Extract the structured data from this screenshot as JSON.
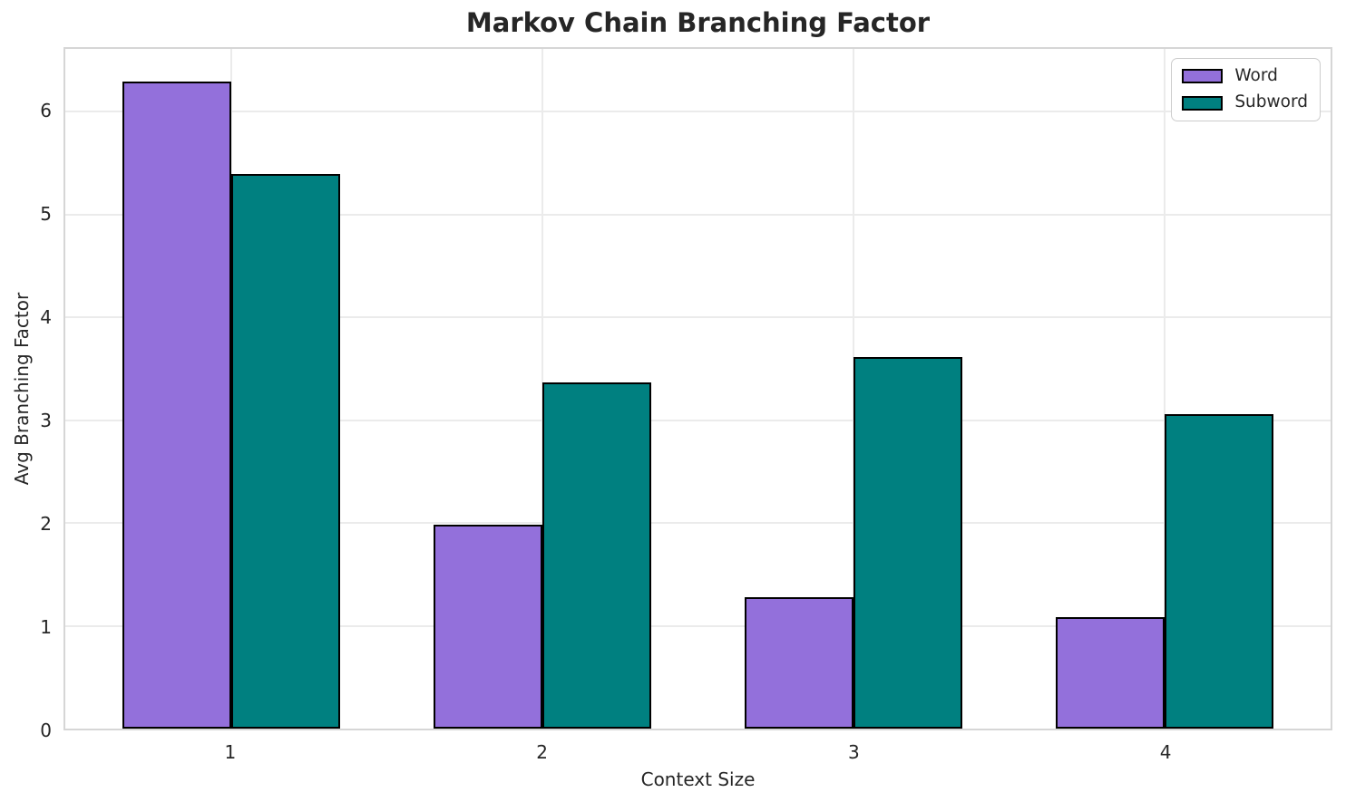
{
  "chart_data": {
    "type": "bar",
    "title": "Markov Chain Branching Factor",
    "xlabel": "Context Size",
    "ylabel": "Avg Branching Factor",
    "categories": [
      "1",
      "2",
      "3",
      "4"
    ],
    "series": [
      {
        "name": "Word",
        "color": "#9370DB",
        "values": [
          6.29,
          1.98,
          1.28,
          1.08
        ]
      },
      {
        "name": "Subword",
        "color": "#008080",
        "values": [
          5.39,
          3.37,
          3.61,
          3.06
        ]
      }
    ],
    "ylim": [
      0,
      6.61
    ],
    "yticks": [
      0,
      1,
      2,
      3,
      4,
      5,
      6
    ],
    "grid": true,
    "legend_position": "upper right",
    "bar_edge_color": "#000000",
    "grid_color": "#ebebeb",
    "background_color": "#ffffff",
    "text_color": "#262626"
  }
}
